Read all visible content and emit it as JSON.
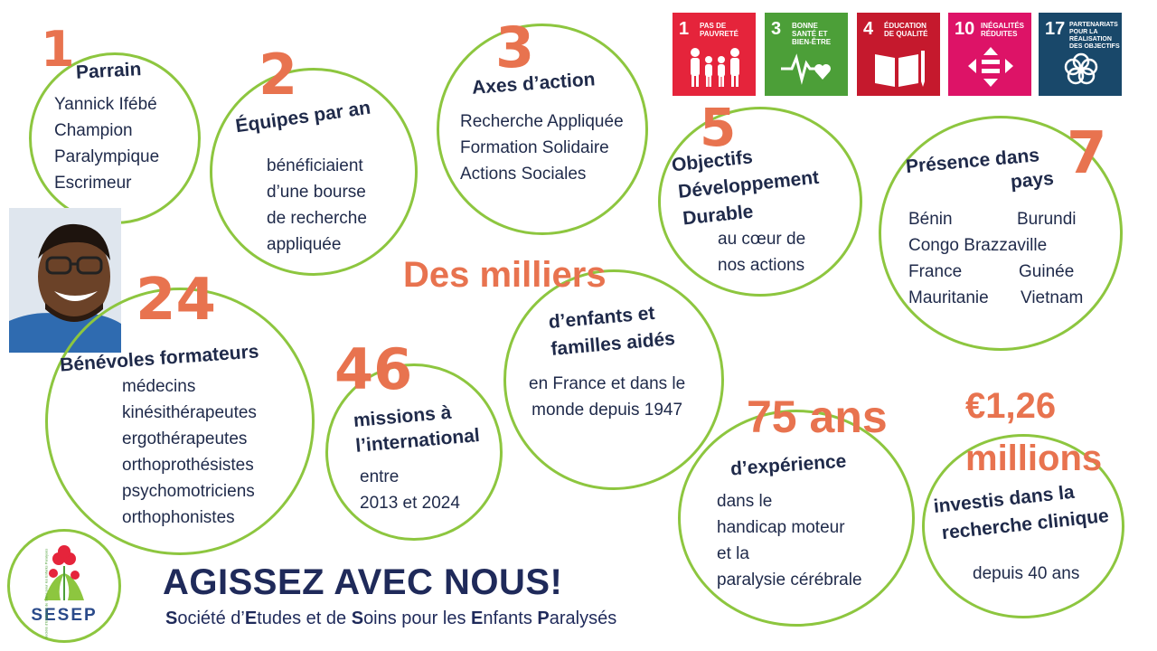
{
  "odd": [
    {
      "num": "1",
      "label": "PAS DE PAUVRETÉ",
      "color": "#e5243b",
      "icon": "people-icon"
    },
    {
      "num": "3",
      "label": "BONNE SANTÉ ET BIEN-ÊTRE",
      "color": "#4c9f38",
      "icon": "heartbeat-icon"
    },
    {
      "num": "4",
      "label": "ÉDUCATION DE QUALITÉ",
      "color": "#c5192d",
      "icon": "book-icon"
    },
    {
      "num": "10",
      "label": "INÉGALITÉS RÉDUITES",
      "color": "#dd1367",
      "icon": "equality-icon"
    },
    {
      "num": "17",
      "label": "PARTENARIATS POUR LA RÉALISATION DES OBJECTIFS",
      "color": "#19486a",
      "icon": "rings-icon"
    }
  ],
  "parrain": {
    "num": "1",
    "title": "Parrain",
    "lines": [
      "Yannick Ifébé",
      "Champion",
      "Paralympique",
      "Escrimeur"
    ]
  },
  "equipes": {
    "num": "2",
    "title": "Équipes par an",
    "lines": [
      "bénéficiaient",
      "d’une bourse",
      "de recherche",
      "appliquée"
    ]
  },
  "axes": {
    "num": "3",
    "title": "Axes d’action",
    "lines": [
      "Recherche Appliquée",
      "Formation Solidaire",
      "Actions Sociales"
    ]
  },
  "objectifs": {
    "num": "5",
    "title_lines": [
      "Objectifs",
      "Développement",
      "Durable"
    ],
    "lines": [
      "au cœur de",
      "nos actions"
    ]
  },
  "presence": {
    "num": "7",
    "title_lines": [
      "Présence dans",
      "pays"
    ],
    "countries": [
      "Bénin",
      "Burundi",
      "Congo Brazzaville",
      "France",
      "Guinée",
      "Mauritanie",
      "Vietnam"
    ]
  },
  "benevoles": {
    "num": "24",
    "title": "Bénévoles formateurs",
    "lines": [
      "médecins",
      "kinésithérapeutes",
      "ergothérapeutes",
      "orthoprothésistes",
      "psychomotriciens",
      "orthophonistes"
    ]
  },
  "missions": {
    "num": "46",
    "title_lines": [
      "missions à",
      "l’international"
    ],
    "lines": [
      "entre",
      "2013 et 2024"
    ]
  },
  "milliers": {
    "num": "Des milliers",
    "title_lines": [
      "d’enfants et",
      "familles aidés"
    ],
    "lines": [
      "en France et dans le",
      "monde depuis 1947"
    ]
  },
  "experience": {
    "num": "75 ans",
    "title": "d’expérience",
    "lines": [
      "dans le",
      "handicap moteur",
      "et la",
      "paralysie cérébrale"
    ]
  },
  "investis": {
    "num_lines": [
      "€1,26",
      "millions"
    ],
    "title_lines": [
      "investis dans la",
      "recherche clinique"
    ],
    "lines": [
      "depuis 40 ans"
    ]
  },
  "footer": {
    "cta": "AGISSEZ AVEC NOUS!",
    "tagline_parts": [
      [
        "S",
        "ociété d’"
      ],
      [
        "E",
        "tudes et de "
      ],
      [
        "S",
        "oins pour les "
      ],
      [
        "E",
        "nfants "
      ],
      [
        "P",
        "aralysés"
      ]
    ],
    "logo_text": "SESEP",
    "logo_ring_text": "Société d'Etudes et de Soins pour les Enfants Paralysés"
  }
}
